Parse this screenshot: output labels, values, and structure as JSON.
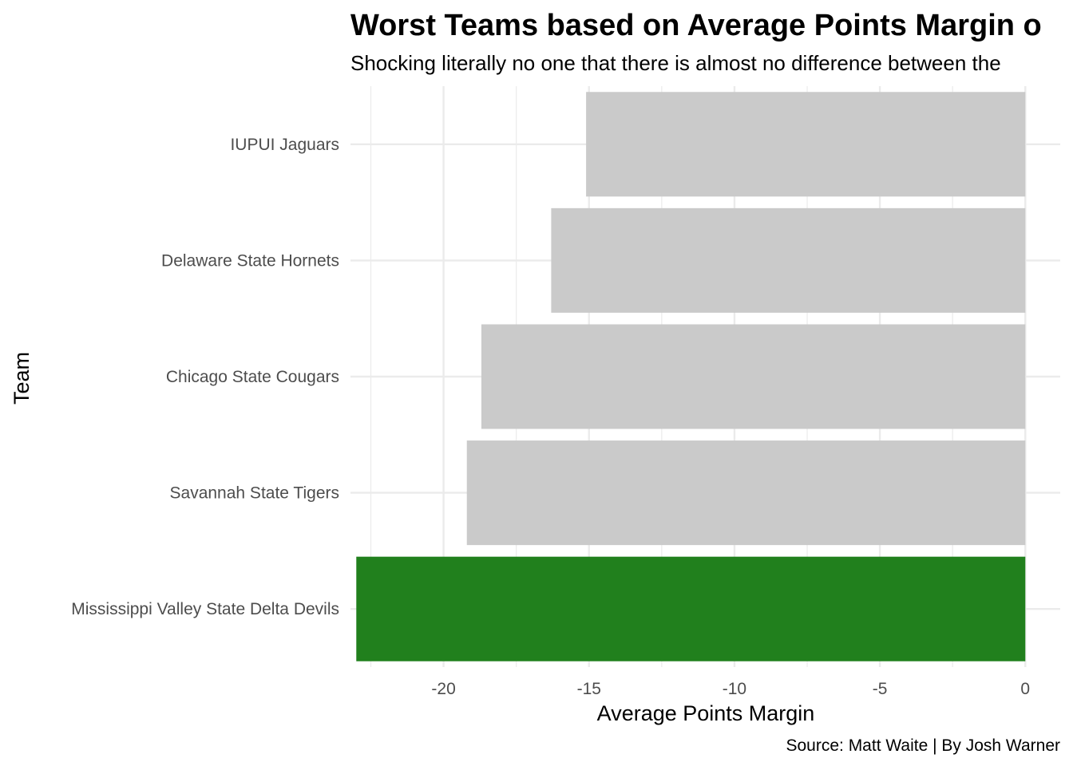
{
  "chart_data": {
    "type": "bar",
    "orientation": "horizontal",
    "title": "Worst Teams based on Average Points Margin o",
    "subtitle": "Shocking literally no one that there is almost no difference between the",
    "xlabel": "Average Points Margin",
    "ylabel": "Team",
    "caption": "Source: Matt Waite | By Josh Warner",
    "categories": [
      "IUPUI Jaguars",
      "Delaware State Hornets",
      "Chicago State Cougars",
      "Savannah State Tigers",
      "Mississippi Valley State Delta Devils"
    ],
    "values": [
      -15.1,
      -16.3,
      -18.7,
      -19.2,
      -23.0
    ],
    "bar_colors": [
      "#cacaca",
      "#cacaca",
      "#cacaca",
      "#cacaca",
      "#21801d"
    ],
    "highlight_color": "#21801d",
    "default_color": "#cacaca",
    "xlim": [
      -23.2,
      1.2
    ],
    "xticks": [
      -20,
      -15,
      -10,
      -5,
      0
    ],
    "xtick_labels": [
      "-20",
      "-15",
      "-10",
      "-5",
      "0"
    ],
    "grid": true,
    "legend": "none"
  }
}
